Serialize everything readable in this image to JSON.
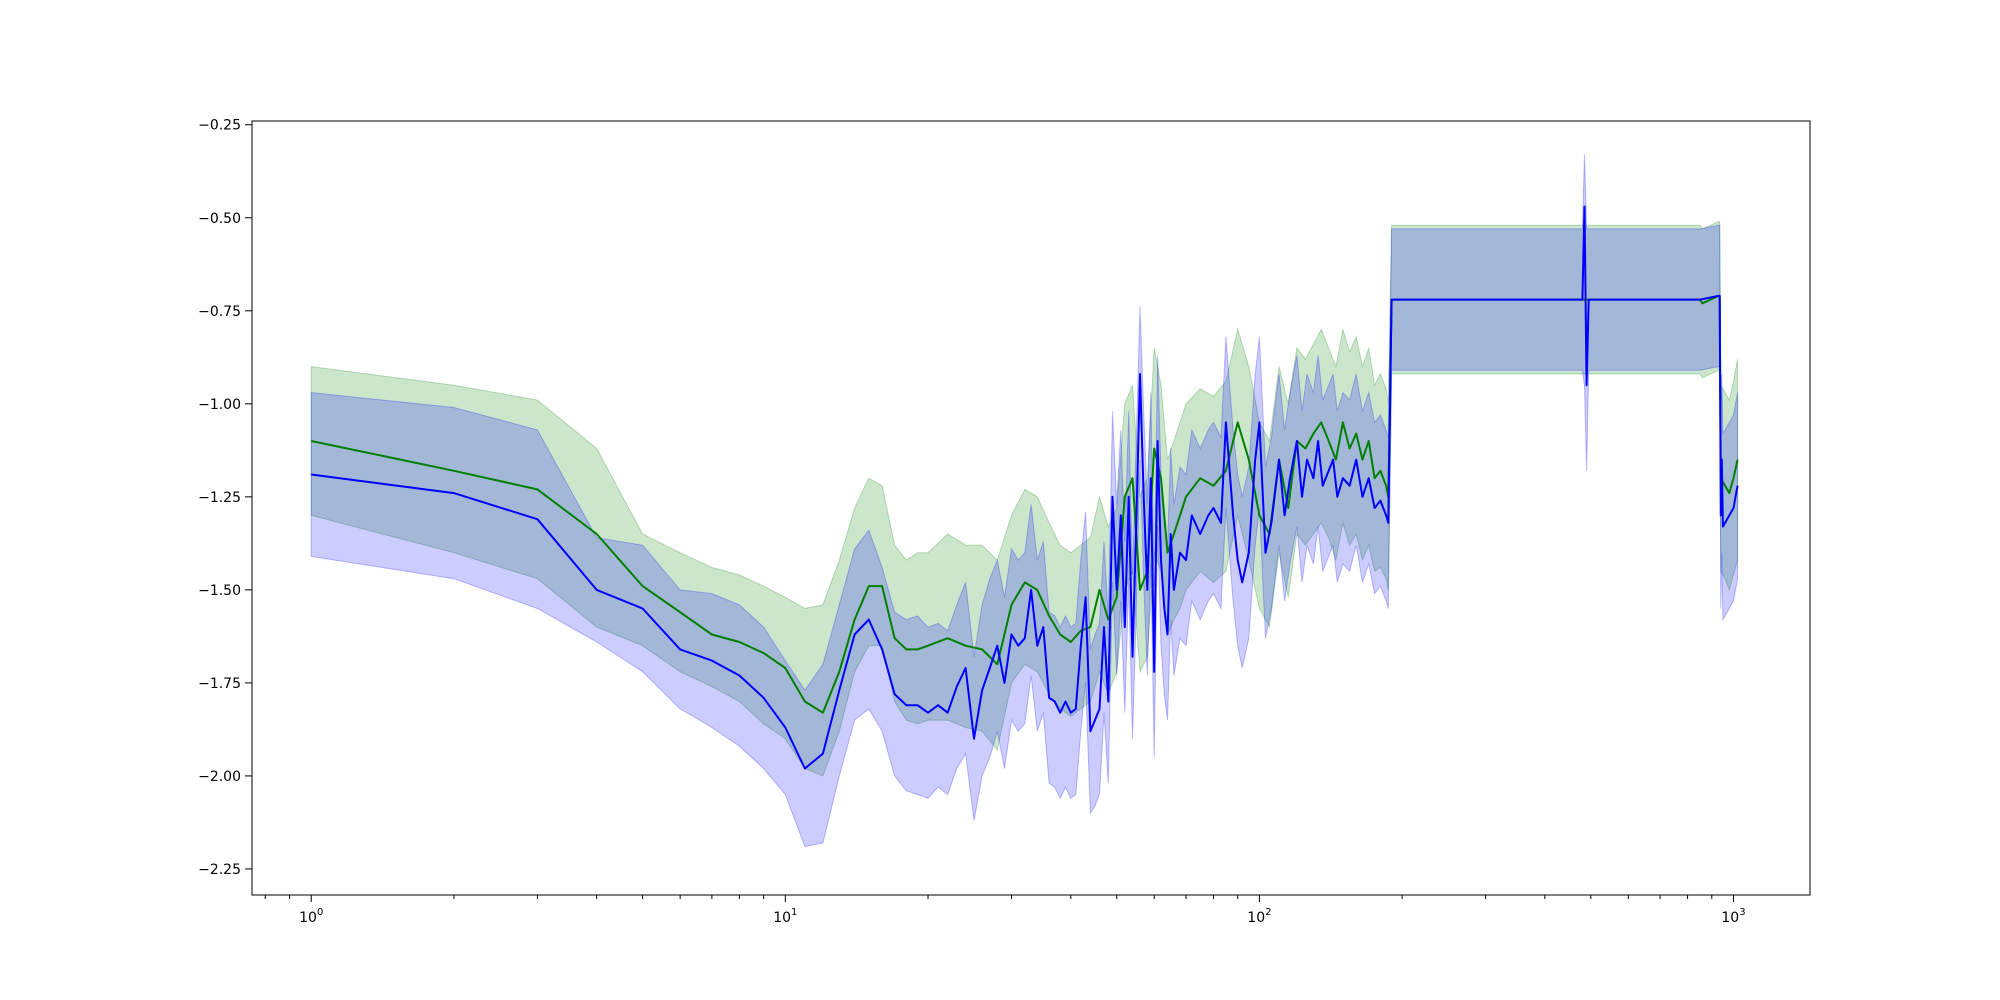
{
  "chart_data": {
    "type": "line",
    "title": "",
    "xlabel": "",
    "ylabel": "",
    "xscale": "log",
    "xlim": [
      0.75,
      1450
    ],
    "ylim": [
      -2.32,
      -0.24
    ],
    "grid": false,
    "legend": "none",
    "x_ticks": [
      {
        "value": 1,
        "base": "10",
        "exp": "0"
      },
      {
        "value": 10,
        "base": "10",
        "exp": "1"
      },
      {
        "value": 100,
        "base": "10",
        "exp": "2"
      },
      {
        "value": 1000,
        "base": "10",
        "exp": "3"
      }
    ],
    "y_ticks": [
      {
        "value": -0.25,
        "label": "−0.25"
      },
      {
        "value": -0.5,
        "label": "−0.50"
      },
      {
        "value": -0.75,
        "label": "−0.75"
      },
      {
        "value": -1.0,
        "label": "−1.00"
      },
      {
        "value": -1.25,
        "label": "−1.25"
      },
      {
        "value": -1.5,
        "label": "−1.50"
      },
      {
        "value": -1.75,
        "label": "−1.75"
      },
      {
        "value": -2.0,
        "label": "−2.00"
      },
      {
        "value": -2.25,
        "label": "−2.25"
      }
    ],
    "series": [
      {
        "color": "#008000",
        "band_color": "#008000",
        "band_opacity": 0.2,
        "x": [
          1,
          2,
          3,
          4,
          5,
          6,
          7,
          8,
          9,
          10,
          11,
          12,
          13,
          14,
          15,
          16,
          17,
          18,
          19,
          20,
          22,
          24,
          26,
          28,
          30,
          32,
          34,
          36,
          38,
          40,
          42,
          44,
          46,
          48,
          50,
          52,
          54,
          56,
          58,
          60,
          62,
          64,
          66,
          68,
          70,
          75,
          80,
          85,
          90,
          95,
          100,
          105,
          110,
          115,
          120,
          125,
          130,
          135,
          140,
          145,
          150,
          155,
          160,
          165,
          170,
          175,
          180,
          185,
          187,
          190,
          300,
          500,
          700,
          850,
          860,
          930,
          935,
          940,
          960,
          980,
          1000,
          1020
        ],
        "y": [
          -1.1,
          -1.18,
          -1.23,
          -1.35,
          -1.49,
          -1.56,
          -1.62,
          -1.64,
          -1.67,
          -1.71,
          -1.8,
          -1.83,
          -1.72,
          -1.58,
          -1.49,
          -1.49,
          -1.63,
          -1.66,
          -1.66,
          -1.65,
          -1.63,
          -1.65,
          -1.66,
          -1.7,
          -1.54,
          -1.48,
          -1.5,
          -1.57,
          -1.62,
          -1.64,
          -1.61,
          -1.6,
          -1.5,
          -1.58,
          -1.52,
          -1.25,
          -1.2,
          -1.5,
          -1.45,
          -1.12,
          -1.2,
          -1.4,
          -1.35,
          -1.3,
          -1.25,
          -1.2,
          -1.22,
          -1.18,
          -1.05,
          -1.15,
          -1.3,
          -1.35,
          -1.15,
          -1.28,
          -1.1,
          -1.12,
          -1.08,
          -1.05,
          -1.1,
          -1.15,
          -1.05,
          -1.12,
          -1.08,
          -1.15,
          -1.1,
          -1.2,
          -1.18,
          -1.22,
          -1.25,
          -0.72,
          -0.72,
          -0.72,
          -0.72,
          -0.72,
          -0.73,
          -0.71,
          -0.71,
          -1.2,
          -1.22,
          -1.24,
          -1.2,
          -1.15
        ],
        "lower": [
          -1.3,
          -1.4,
          -1.47,
          -1.6,
          -1.65,
          -1.72,
          -1.76,
          -1.8,
          -1.86,
          -1.9,
          -1.98,
          -2.0,
          -1.88,
          -1.72,
          -1.65,
          -1.65,
          -1.8,
          -1.85,
          -1.86,
          -1.85,
          -1.85,
          -1.87,
          -1.88,
          -1.93,
          -1.75,
          -1.7,
          -1.72,
          -1.78,
          -1.82,
          -1.84,
          -1.82,
          -1.8,
          -1.72,
          -1.78,
          -1.72,
          -1.5,
          -1.45,
          -1.72,
          -1.68,
          -1.4,
          -1.45,
          -1.62,
          -1.58,
          -1.55,
          -1.5,
          -1.45,
          -1.48,
          -1.45,
          -1.3,
          -1.42,
          -1.55,
          -1.6,
          -1.4,
          -1.52,
          -1.35,
          -1.38,
          -1.35,
          -1.32,
          -1.36,
          -1.42,
          -1.32,
          -1.38,
          -1.35,
          -1.42,
          -1.38,
          -1.45,
          -1.44,
          -1.47,
          -1.5,
          -0.92,
          -0.92,
          -0.92,
          -0.92,
          -0.92,
          -0.93,
          -0.91,
          -0.91,
          -1.45,
          -1.47,
          -1.5,
          -1.46,
          -1.42
        ],
        "upper": [
          -0.9,
          -0.95,
          -0.99,
          -1.12,
          -1.35,
          -1.4,
          -1.44,
          -1.46,
          -1.49,
          -1.52,
          -1.55,
          -1.54,
          -1.42,
          -1.28,
          -1.2,
          -1.22,
          -1.38,
          -1.42,
          -1.4,
          -1.4,
          -1.35,
          -1.38,
          -1.38,
          -1.42,
          -1.3,
          -1.23,
          -1.25,
          -1.32,
          -1.38,
          -1.4,
          -1.38,
          -1.36,
          -1.25,
          -1.33,
          -1.28,
          -1.0,
          -0.95,
          -1.25,
          -1.2,
          -0.85,
          -0.95,
          -1.15,
          -1.1,
          -1.05,
          -1.0,
          -0.96,
          -0.98,
          -0.94,
          -0.8,
          -0.9,
          -1.05,
          -1.1,
          -0.9,
          -1.0,
          -0.85,
          -0.88,
          -0.84,
          -0.8,
          -0.85,
          -0.9,
          -0.8,
          -0.86,
          -0.82,
          -0.9,
          -0.85,
          -0.95,
          -0.92,
          -0.96,
          -1.0,
          -0.52,
          -0.52,
          -0.52,
          -0.52,
          -0.52,
          -0.53,
          -0.51,
          -0.51,
          -0.95,
          -0.97,
          -0.99,
          -0.94,
          -0.88
        ]
      },
      {
        "color": "#0000ff",
        "band_color": "#0000ff",
        "band_opacity": 0.2,
        "x": [
          1,
          2,
          3,
          4,
          5,
          6,
          7,
          8,
          9,
          10,
          11,
          12,
          13,
          14,
          15,
          16,
          17,
          18,
          19,
          20,
          21,
          22,
          23,
          24,
          25,
          26,
          27,
          28,
          29,
          30,
          31,
          32,
          33,
          34,
          35,
          36,
          37,
          38,
          39,
          40,
          41,
          42,
          43,
          44,
          45,
          46,
          47,
          48,
          49,
          50,
          51,
          52,
          53,
          54,
          55,
          56,
          57,
          58,
          59,
          60,
          61,
          62,
          63,
          64,
          65,
          66,
          68,
          70,
          72,
          75,
          78,
          80,
          83,
          85,
          88,
          90,
          92,
          95,
          98,
          100,
          103,
          106,
          110,
          113,
          116,
          120,
          123,
          126,
          130,
          133,
          136,
          140,
          143,
          146,
          150,
          155,
          160,
          165,
          170,
          175,
          180,
          185,
          187,
          190,
          300,
          480,
          485,
          490,
          495,
          500,
          700,
          850,
          930,
          935,
          940,
          945,
          950,
          960,
          980,
          1000,
          1010,
          1020
        ],
        "y": [
          -1.19,
          -1.24,
          -1.31,
          -1.5,
          -1.55,
          -1.66,
          -1.69,
          -1.73,
          -1.79,
          -1.87,
          -1.98,
          -1.94,
          -1.77,
          -1.62,
          -1.58,
          -1.66,
          -1.78,
          -1.81,
          -1.81,
          -1.83,
          -1.81,
          -1.83,
          -1.76,
          -1.71,
          -1.9,
          -1.77,
          -1.71,
          -1.65,
          -1.75,
          -1.62,
          -1.65,
          -1.63,
          -1.5,
          -1.65,
          -1.6,
          -1.79,
          -1.8,
          -1.83,
          -1.8,
          -1.83,
          -1.82,
          -1.65,
          -1.52,
          -1.88,
          -1.85,
          -1.82,
          -1.6,
          -1.8,
          -1.25,
          -1.5,
          -1.3,
          -1.6,
          -1.25,
          -1.68,
          -1.32,
          -0.92,
          -1.25,
          -1.5,
          -1.2,
          -1.72,
          -1.1,
          -1.42,
          -1.55,
          -1.62,
          -1.35,
          -1.5,
          -1.4,
          -1.42,
          -1.3,
          -1.35,
          -1.3,
          -1.28,
          -1.32,
          -1.05,
          -1.3,
          -1.42,
          -1.48,
          -1.4,
          -1.15,
          -1.05,
          -1.4,
          -1.32,
          -1.15,
          -1.3,
          -1.2,
          -1.1,
          -1.25,
          -1.15,
          -1.2,
          -1.1,
          -1.22,
          -1.18,
          -1.15,
          -1.25,
          -1.2,
          -1.22,
          -1.15,
          -1.25,
          -1.2,
          -1.28,
          -1.26,
          -1.3,
          -1.32,
          -0.72,
          -0.72,
          -0.72,
          -0.47,
          -0.95,
          -0.72,
          -0.72,
          -0.72,
          -0.72,
          -0.71,
          -0.71,
          -1.3,
          -1.15,
          -1.33,
          -1.32,
          -1.3,
          -1.28,
          -1.25,
          -1.22
        ],
        "lower": [
          -1.41,
          -1.47,
          -1.55,
          -1.64,
          -1.72,
          -1.82,
          -1.87,
          -1.92,
          -1.98,
          -2.05,
          -2.19,
          -2.18,
          -2.0,
          -1.85,
          -1.82,
          -1.88,
          -2.0,
          -2.04,
          -2.05,
          -2.06,
          -2.03,
          -2.05,
          -1.98,
          -1.94,
          -2.12,
          -2.0,
          -1.95,
          -1.88,
          -1.98,
          -1.85,
          -1.88,
          -1.86,
          -1.73,
          -1.88,
          -1.83,
          -2.02,
          -2.03,
          -2.06,
          -2.03,
          -2.06,
          -2.05,
          -1.88,
          -1.75,
          -2.1,
          -2.08,
          -2.05,
          -1.83,
          -2.02,
          -1.48,
          -1.73,
          -1.53,
          -1.83,
          -1.48,
          -1.9,
          -1.55,
          -1.15,
          -1.48,
          -1.73,
          -1.43,
          -1.95,
          -1.33,
          -1.65,
          -1.78,
          -1.85,
          -1.58,
          -1.73,
          -1.63,
          -1.65,
          -1.53,
          -1.58,
          -1.53,
          -1.51,
          -1.55,
          -1.28,
          -1.53,
          -1.65,
          -1.71,
          -1.63,
          -1.38,
          -1.28,
          -1.63,
          -1.55,
          -1.38,
          -1.53,
          -1.43,
          -1.33,
          -1.48,
          -1.38,
          -1.43,
          -1.33,
          -1.45,
          -1.41,
          -1.38,
          -1.48,
          -1.43,
          -1.45,
          -1.38,
          -1.48,
          -1.43,
          -1.51,
          -1.49,
          -1.53,
          -1.55,
          -0.91,
          -0.91,
          -0.91,
          -0.95,
          -1.18,
          -0.91,
          -0.91,
          -0.91,
          -0.91,
          -0.9,
          -0.9,
          -1.55,
          -1.4,
          -1.58,
          -1.57,
          -1.55,
          -1.53,
          -1.5,
          -1.47
        ],
        "upper": [
          -0.97,
          -1.01,
          -1.07,
          -1.36,
          -1.38,
          -1.5,
          -1.51,
          -1.54,
          -1.6,
          -1.69,
          -1.77,
          -1.7,
          -1.54,
          -1.39,
          -1.34,
          -1.44,
          -1.56,
          -1.58,
          -1.57,
          -1.6,
          -1.59,
          -1.61,
          -1.54,
          -1.48,
          -1.68,
          -1.54,
          -1.47,
          -1.42,
          -1.52,
          -1.39,
          -1.42,
          -1.4,
          -1.27,
          -1.42,
          -1.37,
          -1.56,
          -1.57,
          -1.6,
          -1.57,
          -1.6,
          -1.59,
          -1.42,
          -1.29,
          -1.66,
          -1.62,
          -1.59,
          -1.37,
          -1.58,
          -1.02,
          -1.27,
          -1.07,
          -1.37,
          -1.02,
          -1.46,
          -1.09,
          -0.74,
          -1.02,
          -1.27,
          -0.97,
          -1.49,
          -0.87,
          -1.19,
          -1.32,
          -1.39,
          -1.12,
          -1.27,
          -1.17,
          -1.19,
          -1.07,
          -1.12,
          -1.07,
          -1.05,
          -1.09,
          -0.82,
          -1.07,
          -1.19,
          -1.25,
          -1.17,
          -0.92,
          -0.82,
          -1.17,
          -1.09,
          -0.92,
          -1.07,
          -0.97,
          -0.87,
          -1.02,
          -0.92,
          -0.97,
          -0.87,
          -0.99,
          -0.95,
          -0.92,
          -1.02,
          -0.97,
          -0.99,
          -0.92,
          -1.02,
          -0.97,
          -1.05,
          -1.03,
          -1.07,
          -1.09,
          -0.53,
          -0.53,
          -0.53,
          -0.33,
          -0.53,
          -0.53,
          -0.53,
          -0.53,
          -0.53,
          -0.52,
          -0.52,
          -1.05,
          -0.92,
          -1.08,
          -1.07,
          -1.05,
          -1.03,
          -1.0,
          -0.97
        ]
      }
    ]
  }
}
